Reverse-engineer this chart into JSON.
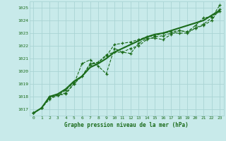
{
  "title": "Graphe pression niveau de la mer (hPa)",
  "bg_color": "#c8eaea",
  "grid_color": "#aad4d4",
  "line_color": "#1a6b1a",
  "text_color": "#1a6b1a",
  "xlim": [
    -0.5,
    23.5
  ],
  "ylim": [
    1016.5,
    1025.5
  ],
  "yticks": [
    1017,
    1018,
    1019,
    1020,
    1021,
    1022,
    1023,
    1024,
    1025
  ],
  "xticks": [
    0,
    1,
    2,
    3,
    4,
    5,
    6,
    7,
    8,
    9,
    10,
    11,
    12,
    13,
    14,
    15,
    16,
    17,
    18,
    19,
    20,
    21,
    22,
    23
  ],
  "series": [
    {
      "y": [
        1016.7,
        1017.1,
        1017.8,
        1018.1,
        1018.2,
        1019.0,
        1019.6,
        1020.5,
        1020.7,
        1021.2,
        1022.1,
        1022.2,
        1022.3,
        1022.5,
        1022.7,
        1022.8,
        1023.0,
        1023.1,
        1023.2,
        1023.1,
        1023.6,
        1024.2,
        1024.3,
        1024.7
      ],
      "marker": "+",
      "linestyle": "--",
      "linewidth": 0.8
    },
    {
      "y": [
        1016.7,
        1017.1,
        1017.9,
        1018.1,
        1018.5,
        1019.1,
        1019.6,
        1020.6,
        1020.7,
        1021.3,
        1021.5,
        1021.5,
        1021.8,
        1022.0,
        1022.5,
        1022.7,
        1022.8,
        1023.0,
        1023.0,
        1023.0,
        1023.4,
        1023.6,
        1024.0,
        1024.9
      ],
      "marker": "+",
      "linestyle": "--",
      "linewidth": 0.8
    },
    {
      "y": [
        1016.7,
        1017.1,
        1018.0,
        1018.1,
        1018.3,
        1019.0,
        1020.6,
        1020.9,
        1020.4,
        1019.8,
        1021.8,
        1021.5,
        1021.4,
        1022.2,
        1022.6,
        1022.6,
        1022.5,
        1022.9,
        1023.2,
        1023.1,
        1023.4,
        1023.7,
        1024.2,
        1025.2
      ],
      "marker": "+",
      "linestyle": "--",
      "linewidth": 0.8
    },
    {
      "y": [
        1016.7,
        1017.1,
        1018.0,
        1018.2,
        1018.6,
        1019.2,
        1019.6,
        1020.3,
        1020.6,
        1021.0,
        1021.5,
        1021.8,
        1022.1,
        1022.4,
        1022.7,
        1022.9,
        1023.0,
        1023.2,
        1023.4,
        1023.6,
        1023.8,
        1024.0,
        1024.4,
        1024.8
      ],
      "marker": null,
      "linestyle": "-",
      "linewidth": 1.5
    }
  ]
}
